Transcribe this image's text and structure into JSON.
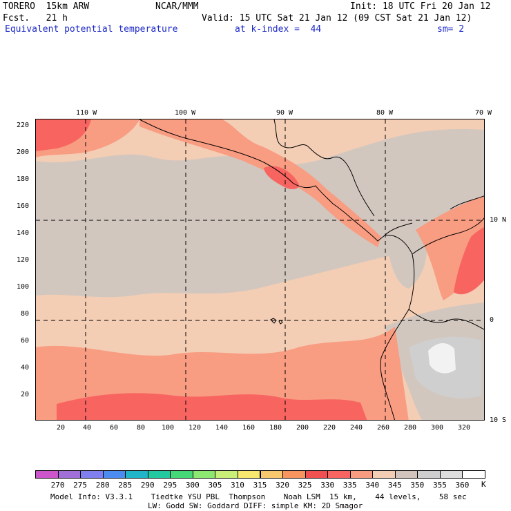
{
  "header": {
    "line1_left": "TORERO  15km ARW",
    "line1_center": "NCAR/MMM",
    "line1_right": "Init: 18 UTC Fri 20 Jan 12",
    "line2_left": "Fcst.   21 h",
    "line2_right": "Valid: 15 UTC Sat 21 Jan 12 (09 CST Sat 21 Jan 12)",
    "line3_field": "Equivalent potential temperature",
    "line3_level": "at k-index =  44",
    "line3_smooth": "sm= 2"
  },
  "axes": {
    "top_longitudes": [
      "110 W",
      "100 W",
      "90 W",
      "80 W",
      "70 W"
    ],
    "right_latitudes": [
      "10 N",
      "0",
      "10 S"
    ],
    "left_ticks": [
      "220",
      "200",
      "180",
      "160",
      "140",
      "120",
      "100",
      "80",
      "60",
      "40",
      "20"
    ],
    "bottom_ticks": [
      "20",
      "40",
      "60",
      "80",
      "100",
      "120",
      "140",
      "160",
      "180",
      "200",
      "220",
      "240",
      "260",
      "280",
      "300",
      "320"
    ]
  },
  "colorbar": {
    "unit": "K",
    "labels": [
      "270",
      "275",
      "280",
      "285",
      "290",
      "295",
      "300",
      "305",
      "310",
      "315",
      "320",
      "325",
      "330",
      "335",
      "340",
      "345",
      "350",
      "355",
      "360"
    ],
    "colors": [
      "#cc55cc",
      "#a070d8",
      "#7f7ff0",
      "#4c8cf0",
      "#22b4c8",
      "#22c8a0",
      "#46d878",
      "#8ce870",
      "#c8f078",
      "#f8e870",
      "#f8c86e",
      "#f89460",
      "#f05050",
      "#f86460",
      "#f89c82",
      "#f3cdb4",
      "#d0c4bc",
      "#cfcfcf",
      "#dedede",
      "#ffffff"
    ]
  },
  "map_colors": {
    "base_340": "#f3cdb4",
    "band_335": "#f89c82",
    "band_330": "#f86460",
    "band_345": "#d2c7bf",
    "band_350": "#cfcfcf",
    "band_355": "#f2f2f2",
    "coast": "#000000",
    "grid": "#000000"
  },
  "footer": {
    "line1": "Model Info: V3.3.1    Tiedtke YSU PBL  Thompson    Noah LSM  15 km,    44 levels,    58 sec",
    "line2": "LW: Godd SW: Goddard DIFF: simple KM: 2D Smagor"
  }
}
